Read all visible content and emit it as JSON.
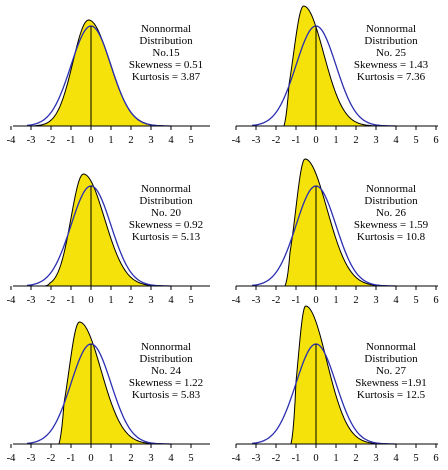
{
  "colors": {
    "fill": "#f4e20a",
    "normal_curve": "#2b2fb0",
    "outline": "#000000"
  },
  "chart_data": [
    {
      "type": "area",
      "panel": "left",
      "row": 0,
      "label_lines": [
        "Nonnormal",
        "Distribution",
        "No.15",
        "Skewness = 0.51",
        "Kurtosis = 3.87"
      ],
      "skewness": 0.51,
      "kurtosis": 3.87,
      "x_ticks": [
        "-4",
        "-3",
        "-2",
        "-1",
        "0",
        "1",
        "2",
        "3",
        "4",
        "5"
      ],
      "xlim": [
        -4,
        5
      ]
    },
    {
      "type": "area",
      "panel": "right",
      "row": 0,
      "label_lines": [
        "Nonnormal",
        "Distribution",
        "No. 25",
        "Skewness = 1.43",
        "Kurtosis = 7.36"
      ],
      "skewness": 1.43,
      "kurtosis": 7.36,
      "x_ticks": [
        "-4",
        "-3",
        "-2",
        "-1",
        "0",
        "1",
        "2",
        "3",
        "4",
        "5",
        "6"
      ],
      "xlim": [
        -4,
        6
      ]
    },
    {
      "type": "area",
      "panel": "left",
      "row": 1,
      "label_lines": [
        "Nonnormal",
        "Distribution",
        "No. 20",
        "Skewness = 0.92",
        "Kurtosis = 5.13"
      ],
      "skewness": 0.92,
      "kurtosis": 5.13,
      "x_ticks": [
        "-4",
        "-3",
        "-2",
        "-1",
        "0",
        "1",
        "2",
        "3",
        "4",
        "5"
      ],
      "xlim": [
        -4,
        5
      ]
    },
    {
      "type": "area",
      "panel": "right",
      "row": 1,
      "label_lines": [
        "Nonnormal",
        "Distribution",
        "No. 26",
        "Skewness = 1.59",
        "Kurtosis = 10.8"
      ],
      "skewness": 1.59,
      "kurtosis": 10.8,
      "x_ticks": [
        "-4",
        "-3",
        "-2",
        "-1",
        "0",
        "1",
        "2",
        "3",
        "4",
        "5",
        "6"
      ],
      "xlim": [
        -4,
        6
      ]
    },
    {
      "type": "area",
      "panel": "left",
      "row": 2,
      "label_lines": [
        "Nonnormal",
        "Distribution",
        "No. 24",
        "Skewness = 1.22",
        "Kurtosis = 5.83"
      ],
      "skewness": 1.22,
      "kurtosis": 5.83,
      "x_ticks": [
        "-4",
        "-3",
        "-2",
        "-1",
        "0",
        "1",
        "2",
        "3",
        "4",
        "5"
      ],
      "xlim": [
        -4,
        5
      ]
    },
    {
      "type": "area",
      "panel": "right",
      "row": 2,
      "label_lines": [
        "Nonnormal",
        "Distribution",
        "No. 27",
        "Skewness =1.91",
        "Kurtosis = 12.5"
      ],
      "skewness": 1.91,
      "kurtosis": 12.5,
      "x_ticks": [
        "-4",
        "-3",
        "-2",
        "-1",
        "0",
        "1",
        "2",
        "3",
        "4",
        "5",
        "6"
      ],
      "xlim": [
        -4,
        6
      ]
    }
  ]
}
